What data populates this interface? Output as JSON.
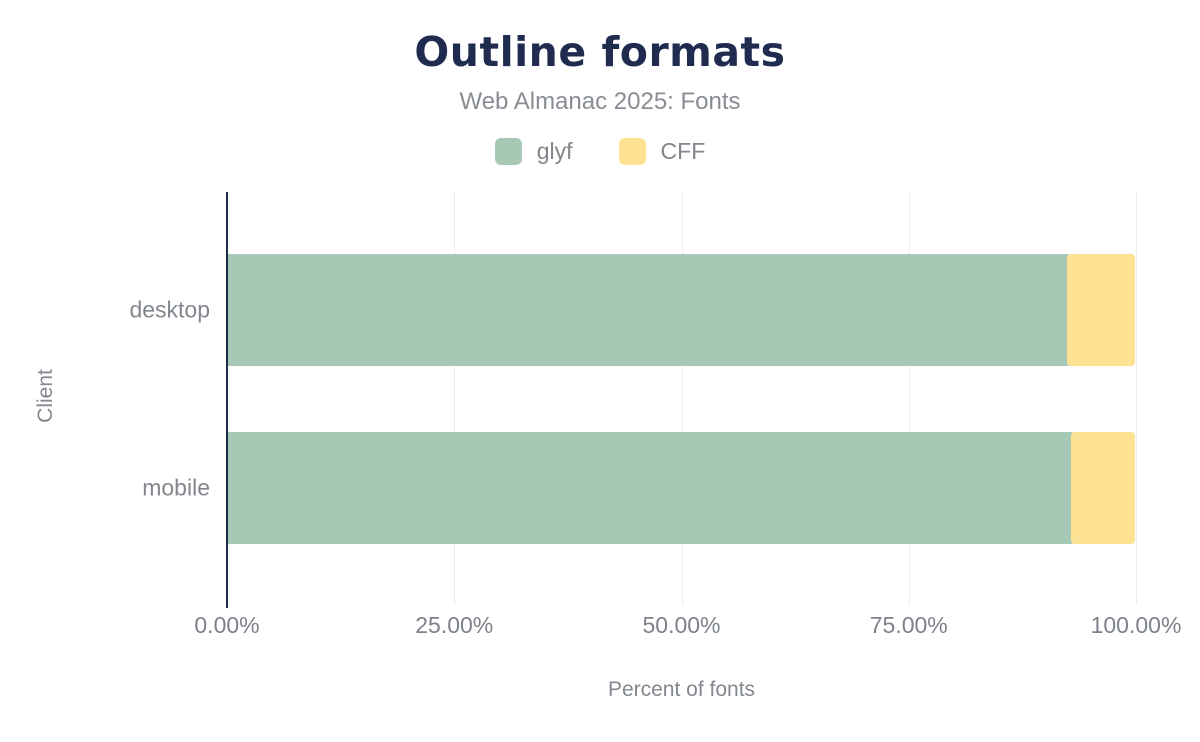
{
  "header": {
    "title": "Outline formats",
    "subtitle": "Web Almanac 2025: Fonts"
  },
  "legend": {
    "items": [
      {
        "label": "glyf",
        "color": "#a6c8b4"
      },
      {
        "label": "CFF",
        "color": "#fde294"
      }
    ]
  },
  "axes": {
    "x_title": "Percent of fonts",
    "y_title": "Client",
    "x_ticks": [
      "0.00%",
      "25.00%",
      "50.00%",
      "75.00%",
      "100.00%"
    ]
  },
  "chart_data": {
    "type": "bar",
    "orientation": "horizontal",
    "stacked": true,
    "title": "Outline formats",
    "subtitle": "Web Almanac 2025: Fonts",
    "xlabel": "Percent of fonts",
    "ylabel": "Client",
    "xlim": [
      0,
      100
    ],
    "x_tick_labels": [
      "0.00%",
      "25.00%",
      "50.00%",
      "75.00%",
      "100.00%"
    ],
    "grid": "vertical-gridlines",
    "legend_position": "top",
    "categories": [
      "desktop",
      "mobile"
    ],
    "series": [
      {
        "name": "glyf",
        "color": "#a6c8b4",
        "values": [
          92.5,
          93.0
        ]
      },
      {
        "name": "CFF",
        "color": "#fde294",
        "values": [
          7.5,
          7.0
        ]
      }
    ]
  },
  "colors": {
    "title": "#1f2c4f",
    "axis_line": "#1e2b49",
    "gridline": "#ededed",
    "label_gray": "#82878e",
    "background": "#ffffff"
  }
}
